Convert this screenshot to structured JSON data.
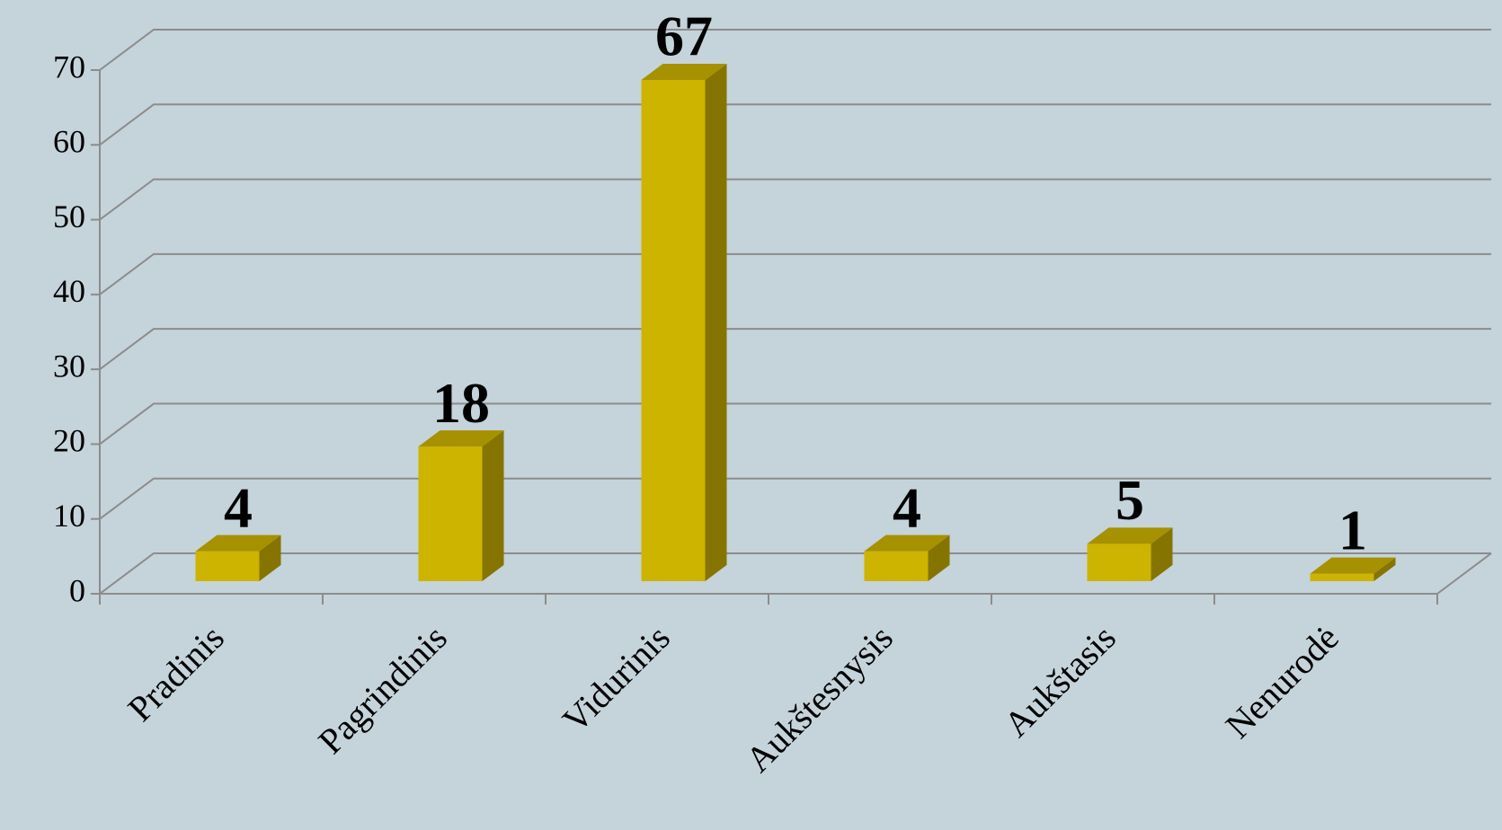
{
  "chart_data": {
    "type": "bar3d",
    "categories": [
      "Pradinis",
      "Pagrindinis",
      "Vidurinis",
      "Aukštesnysis",
      "Aukštasis",
      "Nenurodė"
    ],
    "values": [
      4,
      18,
      67,
      4,
      5,
      1
    ],
    "color": "#cdb400",
    "ylim": [
      0,
      70
    ],
    "yticks": [
      0,
      10,
      20,
      30,
      40,
      50,
      60,
      70
    ],
    "grid": true
  }
}
